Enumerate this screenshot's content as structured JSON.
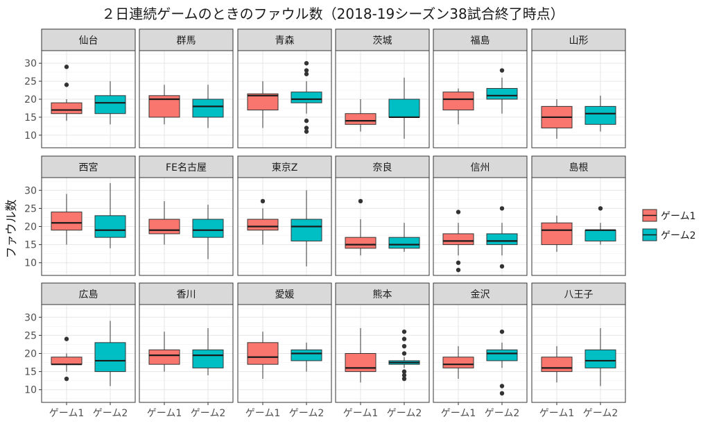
{
  "chart_data": {
    "type": "boxplot",
    "title": "２日連続ゲームのときのファウル数（2018-19シーズン38試合終了時点）",
    "xlabel": "",
    "ylabel": "ファウル数",
    "ylim": [
      6.5,
      33.5
    ],
    "yticks": [
      10,
      15,
      20,
      25,
      30
    ],
    "categories": [
      "ゲーム1",
      "ゲーム2"
    ],
    "colors": [
      "#F8766D",
      "#00BFC4"
    ],
    "legend": {
      "position": "right",
      "entries": [
        "ゲーム1",
        "ゲーム2"
      ]
    },
    "grid": true,
    "facets": [
      {
        "name": "仙台",
        "boxes": [
          {
            "q1": 16,
            "median": 17,
            "q3": 19,
            "low": 14,
            "high": 20,
            "outliers": [
              24,
              29
            ]
          },
          {
            "q1": 16,
            "median": 19,
            "q3": 21,
            "low": 13,
            "high": 25,
            "outliers": []
          }
        ]
      },
      {
        "name": "群馬",
        "boxes": [
          {
            "q1": 15,
            "median": 20,
            "q3": 21,
            "low": 13,
            "high": 24,
            "outliers": []
          },
          {
            "q1": 15,
            "median": 18,
            "q3": 20,
            "low": 12,
            "high": 24,
            "outliers": []
          }
        ]
      },
      {
        "name": "青森",
        "boxes": [
          {
            "q1": 17,
            "median": 21,
            "q3": 21.5,
            "low": 12,
            "high": 25,
            "outliers": []
          },
          {
            "q1": 19,
            "median": 20,
            "q3": 22,
            "low": 16,
            "high": 25,
            "outliers": [
              11,
              12,
              14,
              27,
              28,
              30
            ]
          }
        ]
      },
      {
        "name": "茨城",
        "boxes": [
          {
            "q1": 13,
            "median": 14,
            "q3": 16,
            "low": 11,
            "high": 20,
            "outliers": []
          },
          {
            "q1": 15,
            "median": 15,
            "q3": 20,
            "low": 9,
            "high": 26,
            "outliers": []
          }
        ]
      },
      {
        "name": "福島",
        "boxes": [
          {
            "q1": 17,
            "median": 20,
            "q3": 22,
            "low": 13,
            "high": 23,
            "outliers": []
          },
          {
            "q1": 20,
            "median": 21,
            "q3": 23,
            "low": 16,
            "high": 26,
            "outliers": [
              28
            ]
          }
        ]
      },
      {
        "name": "山形",
        "boxes": [
          {
            "q1": 12,
            "median": 15,
            "q3": 18,
            "low": 9,
            "high": 20,
            "outliers": []
          },
          {
            "q1": 13,
            "median": 16,
            "q3": 18,
            "low": 11,
            "high": 21,
            "outliers": []
          }
        ]
      },
      {
        "name": "西宮",
        "boxes": [
          {
            "q1": 19,
            "median": 21,
            "q3": 24,
            "low": 15,
            "high": 29,
            "outliers": []
          },
          {
            "q1": 17,
            "median": 19,
            "q3": 23,
            "low": 14,
            "high": 32,
            "outliers": []
          }
        ]
      },
      {
        "name": "FE名古屋",
        "boxes": [
          {
            "q1": 18,
            "median": 19,
            "q3": 22,
            "low": 15,
            "high": 27,
            "outliers": []
          },
          {
            "q1": 17,
            "median": 19,
            "q3": 22,
            "low": 11,
            "high": 26,
            "outliers": []
          }
        ]
      },
      {
        "name": "東京Z",
        "boxes": [
          {
            "q1": 19,
            "median": 20,
            "q3": 22,
            "low": 15,
            "high": 25,
            "outliers": [
              27
            ]
          },
          {
            "q1": 16,
            "median": 20,
            "q3": 22,
            "low": 9,
            "high": 30,
            "outliers": []
          }
        ]
      },
      {
        "name": "奈良",
        "boxes": [
          {
            "q1": 14,
            "median": 15,
            "q3": 17,
            "low": 12,
            "high": 22,
            "outliers": [
              27
            ]
          },
          {
            "q1": 14,
            "median": 15,
            "q3": 17,
            "low": 13,
            "high": 21,
            "outliers": []
          }
        ]
      },
      {
        "name": "信州",
        "boxes": [
          {
            "q1": 15,
            "median": 16,
            "q3": 18,
            "low": 12,
            "high": 21,
            "outliers": [
              8,
              10,
              24
            ]
          },
          {
            "q1": 15,
            "median": 16,
            "q3": 18,
            "low": 12,
            "high": 21,
            "outliers": [
              9,
              25
            ]
          }
        ]
      },
      {
        "name": "島根",
        "boxes": [
          {
            "q1": 15,
            "median": 19,
            "q3": 21,
            "low": 13,
            "high": 23,
            "outliers": []
          },
          {
            "q1": 16,
            "median": 19,
            "q3": 19,
            "low": 15,
            "high": 21,
            "outliers": [
              25
            ]
          }
        ]
      },
      {
        "name": "広島",
        "boxes": [
          {
            "q1": 17,
            "median": 17,
            "q3": 19,
            "low": 15,
            "high": 20,
            "outliers": [
              13,
              24
            ]
          },
          {
            "q1": 15,
            "median": 18,
            "q3": 23,
            "low": 11,
            "high": 29,
            "outliers": []
          }
        ]
      },
      {
        "name": "香川",
        "boxes": [
          {
            "q1": 17,
            "median": 19.5,
            "q3": 21,
            "low": 15,
            "high": 26,
            "outliers": []
          },
          {
            "q1": 16,
            "median": 19.5,
            "q3": 21,
            "low": 14,
            "high": 27,
            "outliers": []
          }
        ]
      },
      {
        "name": "愛媛",
        "boxes": [
          {
            "q1": 17,
            "median": 19,
            "q3": 23,
            "low": 13,
            "high": 26,
            "outliers": []
          },
          {
            "q1": 18,
            "median": 20,
            "q3": 21,
            "low": 15,
            "high": 23,
            "outliers": []
          }
        ]
      },
      {
        "name": "熊本",
        "boxes": [
          {
            "q1": 15,
            "median": 16,
            "q3": 20,
            "low": 12,
            "high": 27,
            "outliers": []
          },
          {
            "q1": 17,
            "median": 17.5,
            "q3": 18,
            "low": 16,
            "high": 19,
            "outliers": [
              13,
              14,
              15,
              20,
              22,
              24,
              26
            ]
          }
        ]
      },
      {
        "name": "金沢",
        "boxes": [
          {
            "q1": 16,
            "median": 17,
            "q3": 19,
            "low": 13,
            "high": 22,
            "outliers": []
          },
          {
            "q1": 18,
            "median": 20,
            "q3": 21,
            "low": 16,
            "high": 23,
            "outliers": [
              9,
              11,
              26
            ]
          }
        ]
      },
      {
        "name": "八王子",
        "boxes": [
          {
            "q1": 15,
            "median": 16,
            "q3": 19,
            "low": 12,
            "high": 22,
            "outliers": []
          },
          {
            "q1": 16,
            "median": 18,
            "q3": 21,
            "low": 11,
            "high": 27,
            "outliers": []
          }
        ]
      }
    ]
  }
}
